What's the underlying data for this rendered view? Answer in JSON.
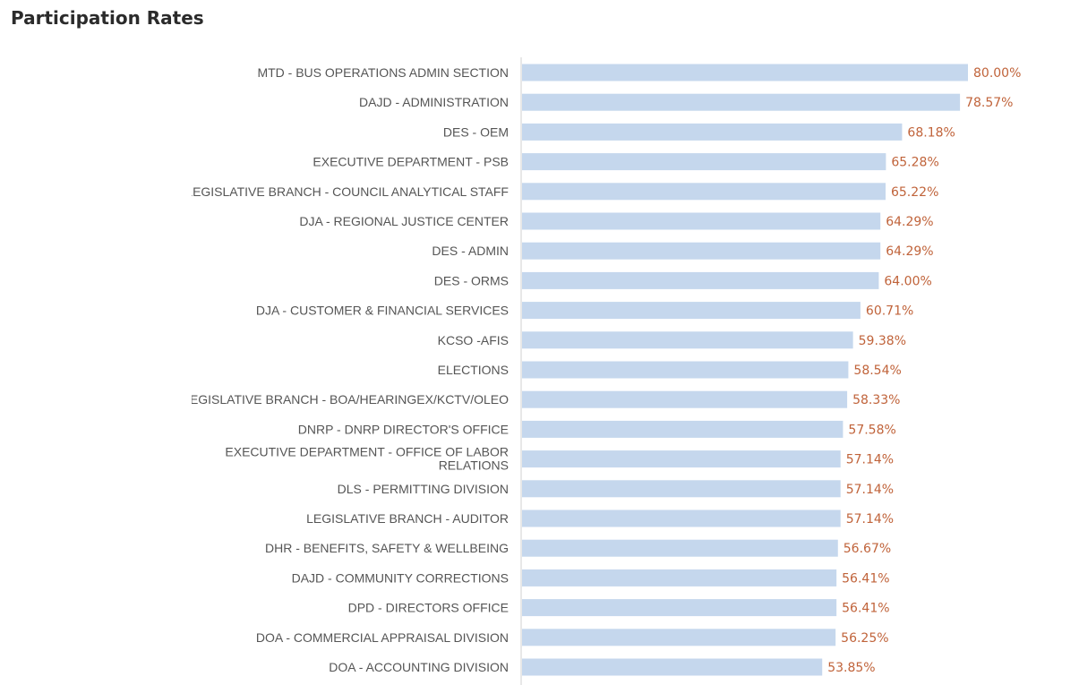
{
  "chart_data": {
    "type": "bar",
    "orientation": "horizontal",
    "title": "Participation Rates",
    "categories": [
      "MTD - BUS OPERATIONS ADMIN SECTION",
      "DAJD - ADMINISTRATION",
      "DES - OEM",
      "EXECUTIVE DEPARTMENT - PSB",
      "LEGISLATIVE BRANCH - COUNCIL ANALYTICAL STAFF",
      "DJA - REGIONAL JUSTICE CENTER",
      "DES - ADMIN",
      "DES - ORMS",
      "DJA - CUSTOMER & FINANCIAL SERVICES",
      "KCSO -AFIS",
      "ELECTIONS",
      "LEGISLATIVE BRANCH - BOA/HEARINGEX/KCTV/OLEO",
      "DNRP - DNRP DIRECTOR'S OFFICE",
      "EXECUTIVE DEPARTMENT - OFFICE OF LABOR RELATIONS",
      "DLS - PERMITTING DIVISION",
      "LEGISLATIVE BRANCH - AUDITOR",
      "DHR - BENEFITS, SAFETY & WELLBEING",
      "DAJD - COMMUNITY CORRECTIONS",
      "DPD - DIRECTORS OFFICE",
      "DOA - COMMERCIAL APPRAISAL DIVISION",
      "DOA - ACCOUNTING DIVISION"
    ],
    "values": [
      80.0,
      78.57,
      68.18,
      65.28,
      65.22,
      64.29,
      64.29,
      64.0,
      60.71,
      59.38,
      58.54,
      58.33,
      57.58,
      57.14,
      57.14,
      57.14,
      56.67,
      56.41,
      56.41,
      56.25,
      53.85
    ],
    "value_labels": [
      "80.00%",
      "78.57%",
      "68.18%",
      "65.28%",
      "65.22%",
      "64.29%",
      "64.29%",
      "64.00%",
      "60.71%",
      "59.38%",
      "58.54%",
      "58.33%",
      "57.58%",
      "57.14%",
      "57.14%",
      "57.14%",
      "56.67%",
      "56.41%",
      "56.41%",
      "56.25%",
      "53.85%"
    ],
    "xlim": [
      0,
      80
    ],
    "grid": false,
    "legend": "none",
    "colors": {
      "bar": "#c5d7ed",
      "value_label": "#c0633a",
      "axis": "#d0d0d0",
      "category_label": "#555555"
    }
  }
}
